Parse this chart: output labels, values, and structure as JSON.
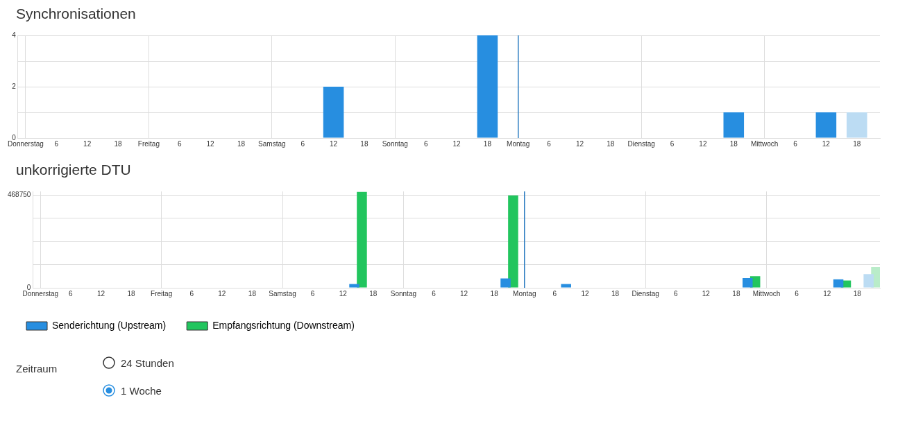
{
  "chart_data": [
    {
      "type": "bar",
      "title": "Synchronisationen",
      "categories": [
        "Donnerstag",
        null,
        "6",
        null,
        "12",
        null,
        "18",
        null,
        "Freitag",
        null,
        "6",
        null,
        "12",
        null,
        "18",
        null,
        "Samstag",
        null,
        "6",
        null,
        "12",
        null,
        "18",
        null,
        "Sonntag",
        null,
        "6",
        null,
        "12",
        null,
        "18",
        null,
        "Montag",
        null,
        "6",
        null,
        "12",
        null,
        "18",
        null,
        "Dienstag",
        null,
        "6",
        null,
        "12",
        null,
        "18",
        null,
        "Mittwoch",
        null,
        "6",
        null,
        "12",
        null,
        "18",
        null
      ],
      "series": [
        {
          "color": "#278ee0",
          "colors": [
            "#278ee0",
            "#278ee0",
            "#278ee0",
            "#278ee0",
            "#278ee0",
            "#278ee0",
            "#278ee0",
            "#278ee0",
            "#278ee0",
            "#278ee0",
            "#278ee0",
            "#278ee0",
            "#278ee0",
            "#278ee0",
            "#278ee0",
            "#278ee0",
            "#278ee0",
            "#278ee0",
            "#278ee0",
            "#278ee0",
            "#278ee0",
            "#278ee0",
            "#278ee0",
            "#278ee0",
            "#278ee0",
            "#278ee0",
            "#278ee0",
            "#278ee0",
            "#278ee0",
            "#278ee0",
            "#278ee0",
            "#278ee0",
            "#278ee0",
            "#278ee0",
            "#278ee0",
            "#278ee0",
            "#278ee0",
            "#278ee0",
            "#278ee0",
            "#278ee0",
            "#278ee0",
            "#278ee0",
            "#278ee0",
            "#278ee0",
            "#278ee0",
            "#278ee0",
            "#278ee0",
            "#278ee0",
            "#278ee0",
            "#278ee0",
            "#278ee0",
            "#278ee0",
            "#278ee0",
            "#278ee0",
            "#bcdcf3",
            "#278ee0"
          ],
          "values": [
            0,
            0,
            0,
            0,
            0,
            0,
            0,
            0,
            0,
            0,
            0,
            0,
            0,
            0,
            0,
            0,
            0,
            0,
            0,
            0,
            2,
            0,
            0,
            0,
            0,
            0,
            0,
            0,
            0,
            0,
            4,
            0,
            0,
            0,
            0,
            0,
            0,
            0,
            0,
            0,
            0,
            0,
            0,
            0,
            0,
            0,
            1,
            0,
            0,
            0,
            0,
            0,
            1,
            0,
            1,
            0
          ]
        }
      ],
      "ylim": [
        0,
        4
      ],
      "yticks": [
        0,
        {
          "value": 1,
          "label": null
        },
        2,
        {
          "value": 3,
          "label": null
        },
        4
      ],
      "ref_lines": [
        {
          "axis": "x",
          "value": "Montag",
          "color": "#2a7bc0"
        }
      ],
      "grid": true,
      "legend": false
    },
    {
      "type": "bar",
      "title": "unkorrigierte DTU",
      "categories": [
        "Donnerstag",
        null,
        "6",
        null,
        "12",
        null,
        "18",
        null,
        "Freitag",
        null,
        "6",
        null,
        "12",
        null,
        "18",
        null,
        "Samstag",
        null,
        "6",
        null,
        "12",
        null,
        "18",
        null,
        "Sonntag",
        null,
        "6",
        null,
        "12",
        null,
        "18",
        null,
        "Montag",
        null,
        "6",
        null,
        "12",
        null,
        "18",
        null,
        "Dienstag",
        null,
        "6",
        null,
        "12",
        null,
        "18",
        null,
        "Mittwoch",
        null,
        "6",
        null,
        "12",
        null,
        "18",
        null
      ],
      "series": [
        {
          "name": "Senderichtung (Upstream)",
          "color": "#278ee0",
          "colors": [
            "#278ee0",
            "#278ee0",
            "#278ee0",
            "#278ee0",
            "#278ee0",
            "#278ee0",
            "#278ee0",
            "#278ee0",
            "#278ee0",
            "#278ee0",
            "#278ee0",
            "#278ee0",
            "#278ee0",
            "#278ee0",
            "#278ee0",
            "#278ee0",
            "#278ee0",
            "#278ee0",
            "#278ee0",
            "#278ee0",
            "#278ee0",
            "#278ee0",
            "#278ee0",
            "#278ee0",
            "#278ee0",
            "#278ee0",
            "#278ee0",
            "#278ee0",
            "#278ee0",
            "#278ee0",
            "#278ee0",
            "#278ee0",
            "#278ee0",
            "#278ee0",
            "#278ee0",
            "#278ee0",
            "#278ee0",
            "#278ee0",
            "#278ee0",
            "#278ee0",
            "#278ee0",
            "#278ee0",
            "#278ee0",
            "#278ee0",
            "#278ee0",
            "#278ee0",
            "#278ee0",
            "#278ee0",
            "#278ee0",
            "#278ee0",
            "#278ee0",
            "#278ee0",
            "#278ee0",
            "#278ee0",
            "#278ee0",
            "#bcdcf3"
          ],
          "values": [
            0,
            0,
            0,
            0,
            0,
            0,
            0,
            0,
            0,
            0,
            0,
            0,
            0,
            0,
            0,
            0,
            0,
            0,
            0,
            0,
            0,
            19000,
            0,
            0,
            0,
            0,
            0,
            0,
            0,
            0,
            0,
            47000,
            0,
            0,
            0,
            19000,
            0,
            0,
            0,
            0,
            0,
            0,
            0,
            0,
            0,
            0,
            0,
            49000,
            0,
            0,
            0,
            0,
            0,
            43000,
            0,
            69000
          ]
        },
        {
          "name": "Empfangsrichtung (Downstream)",
          "color": "#22c55e",
          "colors": [
            "#22c55e",
            "#22c55e",
            "#22c55e",
            "#22c55e",
            "#22c55e",
            "#22c55e",
            "#22c55e",
            "#22c55e",
            "#22c55e",
            "#22c55e",
            "#22c55e",
            "#22c55e",
            "#22c55e",
            "#22c55e",
            "#22c55e",
            "#22c55e",
            "#22c55e",
            "#22c55e",
            "#22c55e",
            "#22c55e",
            "#22c55e",
            "#22c55e",
            "#22c55e",
            "#22c55e",
            "#22c55e",
            "#22c55e",
            "#22c55e",
            "#22c55e",
            "#22c55e",
            "#22c55e",
            "#22c55e",
            "#22c55e",
            "#22c55e",
            "#22c55e",
            "#22c55e",
            "#22c55e",
            "#22c55e",
            "#22c55e",
            "#22c55e",
            "#22c55e",
            "#22c55e",
            "#22c55e",
            "#22c55e",
            "#22c55e",
            "#22c55e",
            "#22c55e",
            "#22c55e",
            "#22c55e",
            "#22c55e",
            "#22c55e",
            "#22c55e",
            "#22c55e",
            "#22c55e",
            "#22c55e",
            "#22c55e",
            "#b9ecc9"
          ],
          "values": [
            0,
            0,
            0,
            0,
            0,
            0,
            0,
            0,
            0,
            0,
            0,
            0,
            0,
            0,
            0,
            0,
            0,
            0,
            0,
            0,
            0,
            485000,
            0,
            0,
            0,
            0,
            0,
            0,
            0,
            0,
            0,
            468000,
            0,
            0,
            0,
            0,
            0,
            0,
            0,
            0,
            0,
            0,
            0,
            0,
            0,
            0,
            0,
            59000,
            0,
            0,
            0,
            0,
            0,
            37000,
            0,
            105000
          ]
        }
      ],
      "ylim": [
        0,
        488000
      ],
      "yticks": [
        0,
        {
          "value": 117187.5,
          "label": null
        },
        {
          "value": 234375,
          "label": null
        },
        {
          "value": 351562.5,
          "label": null
        },
        468750
      ],
      "ref_lines": [
        {
          "axis": "x",
          "value": "Montag",
          "color": "#2a7bc0"
        }
      ],
      "grid": true,
      "legend": "bottom"
    },
    {
      "type": "other",
      "title": "Zeitraum",
      "annotations": [
        "24 Stunden",
        "1 Woche"
      ]
    }
  ]
}
